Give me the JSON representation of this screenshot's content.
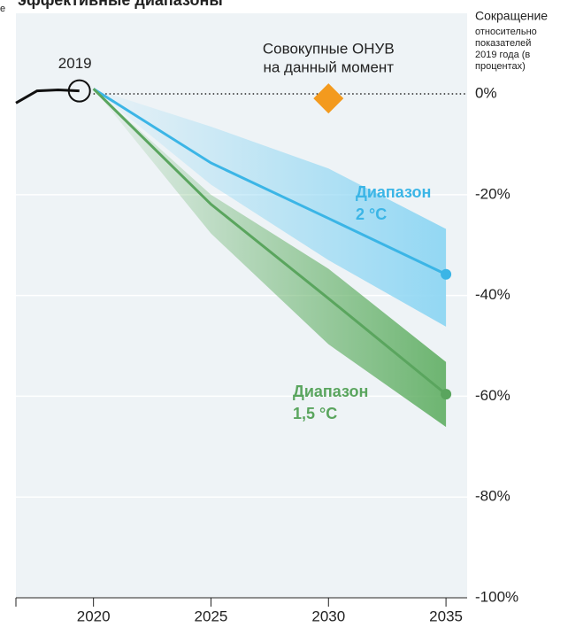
{
  "chart_data": {
    "type": "line",
    "title": "эффективные диапазоны",
    "left_fragment": "е",
    "y_label": "Сокращение",
    "y_note_lines": [
      "относительно",
      "показателей",
      "2019 года (в",
      "процентах)"
    ],
    "xlim": [
      2016.7,
      2035.9
    ],
    "xticks": [
      2020,
      2025,
      2030,
      2035
    ],
    "ylim": [
      -100,
      16
    ],
    "yticks": [
      {
        "value": 0,
        "label": "0%"
      },
      {
        "value": -20,
        "label": "-20%"
      },
      {
        "value": -40,
        "label": "-40%"
      },
      {
        "value": -60,
        "label": "-60%"
      },
      {
        "value": -80,
        "label": "-80%"
      },
      {
        "value": -100,
        "label": "-100%"
      }
    ],
    "grid": true,
    "zero_line": true,
    "background": "#eef3f6",
    "history": {
      "label": "2019",
      "color": "#111111",
      "x": [
        2016.7,
        2017.6,
        2018.5,
        2019.4
      ],
      "values": [
        -1.8,
        0.6,
        0.8,
        0.6
      ]
    },
    "series": [
      {
        "name": "Диапазон 2 °C",
        "label_lines": [
          "Диапазон",
          "2 °C"
        ],
        "color": "#3bb5e6",
        "band_color": "#8ed6f3",
        "x": [
          2020,
          2025,
          2030,
          2035
        ],
        "values": [
          1,
          -13.7,
          -24.7,
          -35.8
        ],
        "upper": [
          1,
          -6.5,
          -14.8,
          -26.8
        ],
        "lower": [
          1,
          -18,
          -33,
          -46.2
        ]
      },
      {
        "name": "Диапазон 1,5 °C",
        "label_lines": [
          "Диапазон",
          "1,5 °C"
        ],
        "color": "#5aa55e",
        "band_color": "#5fae62",
        "x": [
          2020,
          2025,
          2030,
          2035
        ],
        "values": [
          1,
          -21.9,
          -40.6,
          -59.6
        ],
        "upper": [
          1,
          -20,
          -34.7,
          -53.2
        ],
        "lower": [
          1,
          -27.7,
          -49.7,
          -66.1
        ]
      }
    ],
    "marker": {
      "label_lines": [
        "Совокупные ОНУВ",
        "на данный момент"
      ],
      "x": 2030,
      "value": -0.9,
      "color": "#f39a1e"
    }
  }
}
